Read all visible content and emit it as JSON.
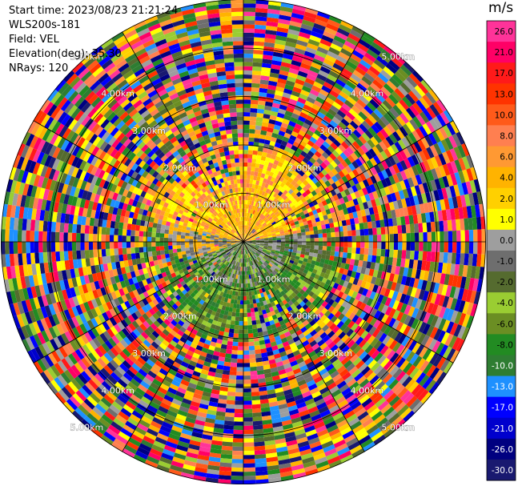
{
  "info": {
    "start_time": "Start time: 2023/08/23 21:21:24",
    "instrument": "WLS200s-181",
    "field": "Field: VEL",
    "elevation": "Elevation(deg): 35.30",
    "nrays": "NRays: 120"
  },
  "colorbar": {
    "unit": "m/s",
    "ticks": [
      "26.0",
      "21.0",
      "17.0",
      "13.0",
      "10.0",
      "8.0",
      "6.0",
      "4.0",
      "2.0",
      "1.0",
      "0.0",
      "-1.0",
      "-2.0",
      "-4.0",
      "-6.0",
      "-8.0",
      "-10.0",
      "-13.0",
      "-17.0",
      "-21.0",
      "-26.0",
      "-30.0"
    ],
    "colors": [
      "#ff3399",
      "#ff0066",
      "#ff1a1a",
      "#ff3300",
      "#ff5a1a",
      "#ff7f50",
      "#ff9933",
      "#ffb300",
      "#ffd000",
      "#ffff00",
      "#9e9e9e",
      "#6e6e6e",
      "#556b2f",
      "#9acd32",
      "#6b8e23",
      "#228b22",
      "#2e7d32",
      "#1e90ff",
      "#0000ff",
      "#0000cd",
      "#000080",
      "#191970"
    ]
  },
  "rings": {
    "labels": [
      "1.00km",
      "2.00km",
      "3.00km",
      "4.00km",
      "5.00km"
    ]
  },
  "chart_data": {
    "type": "heatmap",
    "projection": "polar PPI",
    "field": "VEL",
    "unit": "m/s",
    "nrays": 120,
    "elevation_deg": 35.3,
    "range_rings_km": [
      1,
      2,
      3,
      4,
      5
    ],
    "value_range": [
      -30.0,
      26.0
    ],
    "pattern": "noise-like random velocities beyond ~1.5 km; coherent positive (yellow/orange) velocities toward the north and negative (green) velocities toward the south within ~2 km"
  }
}
